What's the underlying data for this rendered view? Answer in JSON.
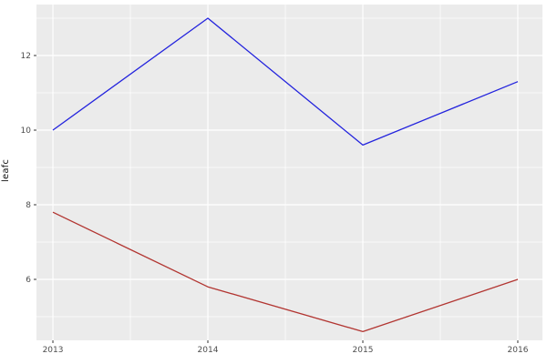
{
  "chart": {
    "background": "#ffffff",
    "panel_bg": "#ebebeb",
    "grid_major_color": "#ffffff",
    "grid_minor_color": "#ffffff",
    "tick_mark_color": "#333333",
    "tick_label_color": "#4d4d4d",
    "axis_title_color": "#111111"
  },
  "chart_data": {
    "type": "line",
    "title": "",
    "xlabel": "",
    "ylabel": "leafc",
    "x": [
      2013,
      2014,
      2015,
      2016
    ],
    "series": [
      {
        "name": "blue-series",
        "color": "#2323dd",
        "values": [
          10.0,
          13.0,
          9.6,
          11.3
        ]
      },
      {
        "name": "red-series",
        "color": "#b23531",
        "values": [
          7.8,
          5.8,
          4.6,
          6.0
        ]
      }
    ],
    "x_ticks": [
      2013,
      2014,
      2015,
      2016
    ],
    "x_tick_labels": [
      "2013",
      "2014",
      "2015",
      "2016"
    ],
    "y_ticks": [
      6,
      8,
      10,
      12
    ],
    "y_tick_labels": [
      "6",
      "8",
      "10",
      "12"
    ],
    "x_minor": [
      2013.5,
      2014.5,
      2015.5
    ],
    "y_minor": [
      5,
      7,
      9,
      11,
      13
    ],
    "xlim": [
      2012.894,
      2016.159
    ],
    "ylim": [
      4.366,
      13.366
    ],
    "grid": "major+minor",
    "legend": "none"
  }
}
